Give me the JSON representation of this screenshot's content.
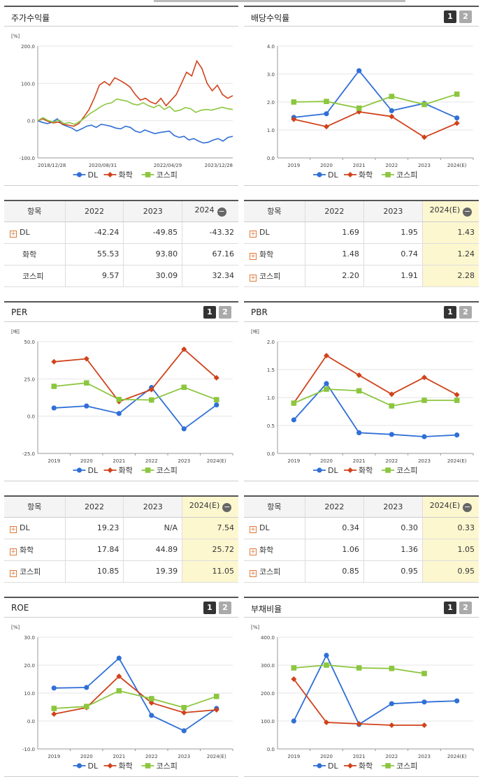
{
  "colors": {
    "dl": "#2f6fd6",
    "chem": "#d0421b",
    "kospi": "#8cc63f"
  },
  "legend": [
    "DL",
    "화학",
    "코스피"
  ],
  "pager": [
    "1",
    "2"
  ],
  "panels": {
    "stock": {
      "title": "주가수익률"
    },
    "dividend": {
      "title": "배당수익률"
    },
    "per": {
      "title": "PER"
    },
    "pbr": {
      "title": "PBR"
    },
    "roe": {
      "title": "ROE"
    },
    "debt": {
      "title": "부채비율"
    }
  },
  "chart_data": [
    {
      "id": "stock",
      "type": "line",
      "unit": "[%]",
      "ylim": [
        -100,
        200
      ],
      "yticks": [
        "200.0",
        "100.0",
        "0.0",
        "-100.0"
      ],
      "xticks": [
        "2018/12/28",
        "2020/08/31",
        "2022/04/29",
        "2023/12/28"
      ],
      "series": [
        {
          "name": "DL",
          "values": [
            0,
            -5,
            -8,
            -4,
            5,
            -10,
            -15,
            -20,
            -28,
            -22,
            -15,
            -12,
            -18,
            -10,
            -12,
            -15,
            -20,
            -22,
            -15,
            -18,
            -28,
            -32,
            -25,
            -30,
            -35,
            -32,
            -30,
            -28,
            -40,
            -45,
            -42,
            -52,
            -48,
            -55,
            -60,
            -58,
            -52,
            -48,
            -55,
            -45,
            -42
          ]
        },
        {
          "name": "화학",
          "values": [
            0,
            5,
            -2,
            -6,
            -4,
            -10,
            -12,
            -15,
            -8,
            10,
            30,
            60,
            95,
            105,
            95,
            115,
            108,
            100,
            90,
            70,
            55,
            60,
            50,
            45,
            60,
            40,
            55,
            70,
            100,
            130,
            120,
            160,
            140,
            100,
            80,
            95,
            70,
            60,
            67
          ]
        },
        {
          "name": "코스피",
          "values": [
            0,
            8,
            0,
            -4,
            2,
            -8,
            -5,
            -10,
            -2,
            8,
            20,
            28,
            38,
            45,
            48,
            58,
            55,
            52,
            45,
            42,
            48,
            40,
            35,
            42,
            30,
            38,
            25,
            28,
            35,
            32,
            22,
            28,
            30,
            28,
            32,
            36,
            32,
            30
          ]
        }
      ]
    },
    {
      "id": "dividend",
      "type": "line",
      "unit": "",
      "ylim": [
        0,
        4
      ],
      "yticks": [
        "4.0",
        "3.0",
        "2.0",
        "1.0",
        "0.0"
      ],
      "categories": [
        "2019",
        "2020",
        "2021",
        "2022",
        "2023",
        "2024(E)"
      ],
      "series": [
        {
          "name": "DL",
          "values": [
            1.45,
            1.58,
            3.12,
            1.69,
            1.95,
            1.43
          ]
        },
        {
          "name": "화학",
          "values": [
            1.38,
            1.12,
            1.65,
            1.48,
            0.74,
            1.24
          ]
        },
        {
          "name": "코스피",
          "values": [
            2.0,
            2.02,
            1.78,
            2.2,
            1.91,
            2.28
          ]
        }
      ]
    },
    {
      "id": "per",
      "type": "line",
      "unit": "[배]",
      "ylim": [
        -25,
        50
      ],
      "yticks": [
        "50.0",
        "25.0",
        "0.0",
        "-25.0"
      ],
      "categories": [
        "2019",
        "2020",
        "2021",
        "2022",
        "2023",
        "2024(E)"
      ],
      "series": [
        {
          "name": "DL",
          "values": [
            5.5,
            6.8,
            1.8,
            19.23,
            null,
            7.54
          ],
          "plot": [
            5.5,
            6.8,
            1.8,
            19.23,
            -8.5,
            7.54
          ]
        },
        {
          "name": "화학",
          "values": [
            36.5,
            38.5,
            9.8,
            17.84,
            44.89,
            25.72
          ]
        },
        {
          "name": "코스피",
          "values": [
            20,
            22.3,
            11.2,
            10.85,
            19.39,
            11.05
          ]
        }
      ]
    },
    {
      "id": "pbr",
      "type": "line",
      "unit": "[배]",
      "ylim": [
        0,
        2
      ],
      "yticks": [
        "2.0",
        "1.5",
        "1.0",
        "0.5",
        "0.0"
      ],
      "categories": [
        "2019",
        "2020",
        "2021",
        "2022",
        "2023",
        "2024(E)"
      ],
      "series": [
        {
          "name": "DL",
          "values": [
            0.6,
            1.25,
            0.37,
            0.34,
            0.3,
            0.33
          ]
        },
        {
          "name": "화학",
          "values": [
            0.9,
            1.75,
            1.4,
            1.06,
            1.36,
            1.05
          ]
        },
        {
          "name": "코스피",
          "values": [
            0.9,
            1.15,
            1.12,
            0.85,
            0.95,
            0.95
          ]
        }
      ]
    },
    {
      "id": "roe",
      "type": "line",
      "unit": "[%]",
      "ylim": [
        -10,
        30
      ],
      "yticks": [
        "30.0",
        "20.0",
        "10.0",
        "0.0",
        "-10.0"
      ],
      "categories": [
        "2019",
        "2020",
        "2021",
        "2022",
        "2023",
        "2024(E)"
      ],
      "series": [
        {
          "name": "DL",
          "values": [
            11.8,
            12,
            22.5,
            2,
            -3.5,
            4.5
          ]
        },
        {
          "name": "화학",
          "values": [
            2.5,
            4.8,
            16,
            6.5,
            3,
            4
          ]
        },
        {
          "name": "코스피",
          "values": [
            4.5,
            5.2,
            10.8,
            8,
            4.8,
            8.8
          ]
        }
      ]
    },
    {
      "id": "debt",
      "type": "line",
      "unit": "[%]",
      "ylim": [
        0,
        4000
      ],
      "yticks": [
        "400.0",
        "300.0",
        "200.0",
        "100.0",
        "0.0"
      ],
      "categories": [
        "2019",
        "2020",
        "2021",
        "2022",
        "2023",
        "2024(E)"
      ],
      "series": [
        {
          "name": "DL",
          "values": [
            1000,
            3350,
            880,
            1620,
            1680,
            1720
          ]
        },
        {
          "name": "화학",
          "values": [
            2500,
            950,
            900,
            850,
            850,
            null
          ]
        },
        {
          "name": "코스피",
          "values": [
            2900,
            3000,
            2900,
            2880,
            2700,
            null
          ]
        }
      ]
    }
  ],
  "tables": {
    "stock": {
      "headers": [
        "항목",
        "2022",
        "2023",
        "2024"
      ],
      "rows": [
        {
          "label": "DL",
          "plus": true,
          "cells": [
            "-42.24",
            "-49.85",
            "-43.32"
          ]
        },
        {
          "label": "화학",
          "plus": false,
          "cells": [
            "55.53",
            "93.80",
            "67.16"
          ]
        },
        {
          "label": "코스피",
          "plus": false,
          "cells": [
            "9.57",
            "30.09",
            "32.34"
          ]
        }
      ]
    },
    "dividend": {
      "headers": [
        "항목",
        "2022",
        "2023",
        "2024(E)"
      ],
      "rows": [
        {
          "label": "DL",
          "plus": true,
          "cells": [
            "1.69",
            "1.95",
            "1.43"
          ]
        },
        {
          "label": "화학",
          "plus": true,
          "cells": [
            "1.48",
            "0.74",
            "1.24"
          ]
        },
        {
          "label": "코스피",
          "plus": true,
          "cells": [
            "2.20",
            "1.91",
            "2.28"
          ]
        }
      ]
    },
    "per": {
      "headers": [
        "항목",
        "2022",
        "2023",
        "2024(E)"
      ],
      "rows": [
        {
          "label": "DL",
          "plus": true,
          "cells": [
            "19.23",
            "N/A",
            "7.54"
          ]
        },
        {
          "label": "화학",
          "plus": true,
          "cells": [
            "17.84",
            "44.89",
            "25.72"
          ]
        },
        {
          "label": "코스피",
          "plus": true,
          "cells": [
            "10.85",
            "19.39",
            "11.05"
          ]
        }
      ]
    },
    "pbr": {
      "headers": [
        "항목",
        "2022",
        "2023",
        "2024(E)"
      ],
      "rows": [
        {
          "label": "DL",
          "plus": true,
          "cells": [
            "0.34",
            "0.30",
            "0.33"
          ]
        },
        {
          "label": "화학",
          "plus": true,
          "cells": [
            "1.06",
            "1.36",
            "1.05"
          ]
        },
        {
          "label": "코스피",
          "plus": true,
          "cells": [
            "0.85",
            "0.95",
            "0.95"
          ]
        }
      ]
    }
  }
}
